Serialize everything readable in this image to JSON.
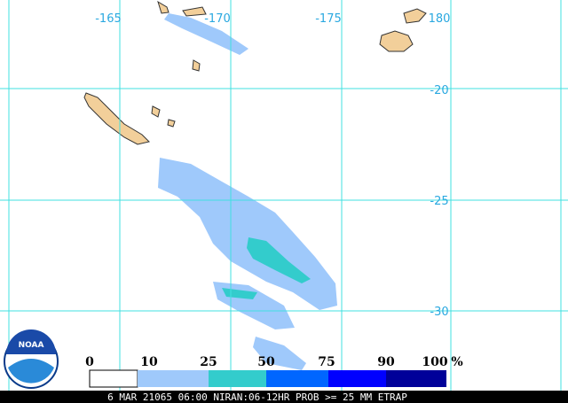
{
  "map": {
    "longitude_labels": [
      "-165",
      "-170",
      "-175",
      "180"
    ],
    "latitude_labels": [
      "-20",
      "-25",
      "-30"
    ],
    "legend": {
      "labels": [
        0,
        10,
        25,
        50,
        75,
        90,
        100
      ],
      "unit": "%"
    },
    "logo": "NOAA",
    "footer": "6 MAR 21065 06:00 NIRAN:06-12HR PROB >= 25 MM ETRAP"
  }
}
